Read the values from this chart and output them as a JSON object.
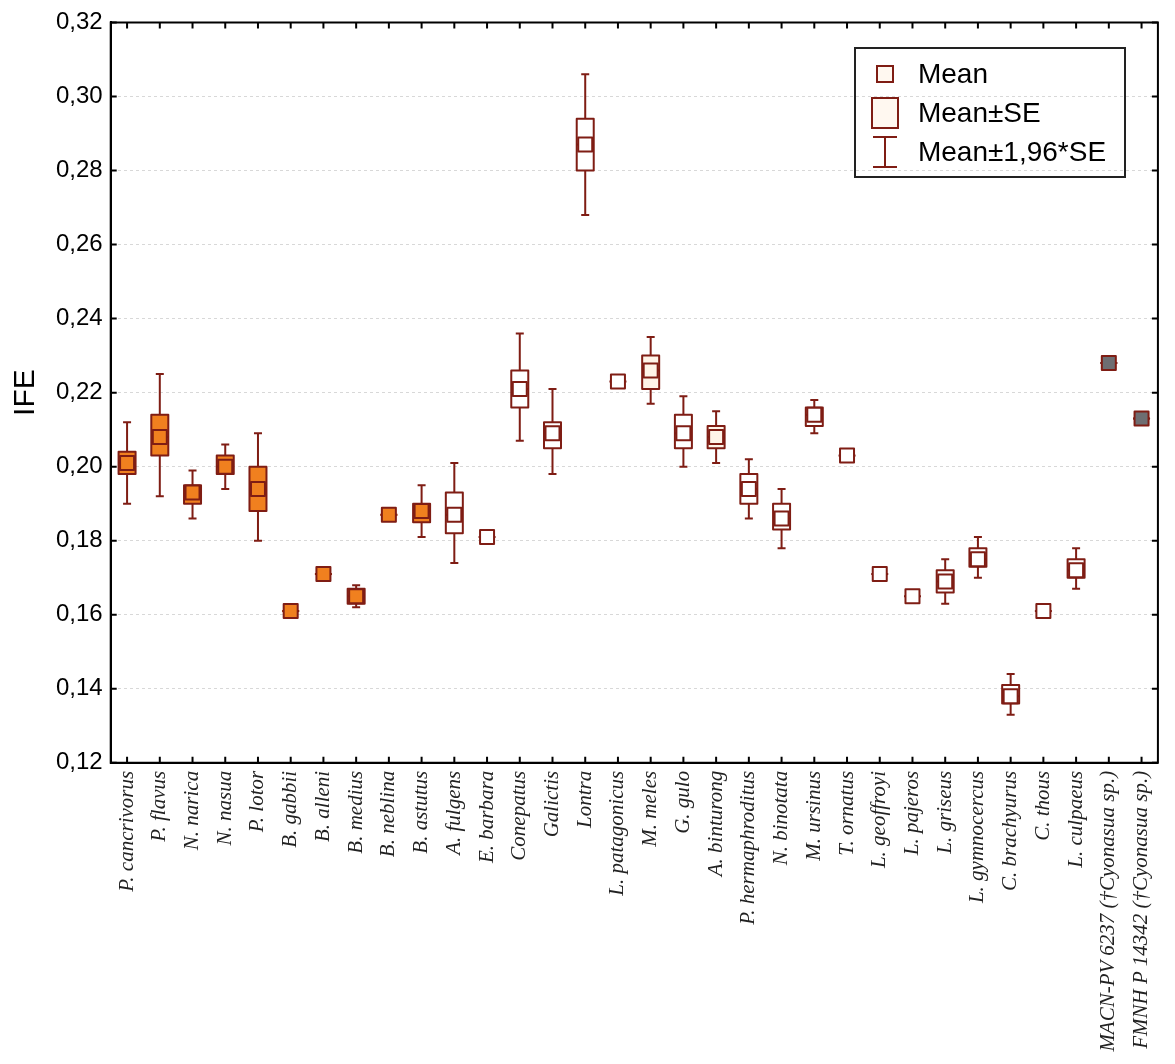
{
  "chart_data": {
    "type": "box",
    "ylabel": "IFE",
    "categories": [
      "P. cancrivorus",
      "P. flavus",
      "N. narica",
      "N. nasua",
      "P. lotor",
      "B. gabbii",
      "B. alleni",
      "B. medius",
      "B. neblina",
      "B. astutus",
      "A. fulgens",
      "E. barbara",
      "Conepatus",
      "Galictis",
      "Lontra",
      "L. patagonicus",
      "M. meles",
      "G. gulo",
      "A. binturong",
      "P. hermaphroditus",
      "N. binotata",
      "M. ursinus",
      "T. ornatus",
      "L. geoffroyi",
      "L. pajeros",
      "L. griseus",
      "L. gymnocercus",
      "C. brachyurus",
      "C. thous",
      "L. culpaeus",
      "MACN-PV 6237 (†Cyonasua sp.)",
      "FMNH P 14342 (†Cyonasua sp.)"
    ],
    "boxes": [
      {
        "low": 0.19,
        "q1": 0.198,
        "median": 0.201,
        "q3": 0.204,
        "high": 0.212,
        "mean": 0.201
      },
      {
        "low": 0.192,
        "q1": 0.203,
        "median": 0.208,
        "q3": 0.214,
        "high": 0.225,
        "mean": 0.208
      },
      {
        "low": 0.186,
        "q1": 0.19,
        "median": 0.193,
        "q3": 0.195,
        "high": 0.199,
        "mean": 0.193
      },
      {
        "low": 0.194,
        "q1": 0.198,
        "median": 0.2,
        "q3": 0.203,
        "high": 0.206,
        "mean": 0.2
      },
      {
        "low": 0.18,
        "q1": 0.188,
        "median": 0.194,
        "q3": 0.2,
        "high": 0.209,
        "mean": 0.194
      },
      {
        "low": 0.161,
        "q1": 0.161,
        "median": 0.161,
        "q3": 0.161,
        "high": 0.161,
        "mean": 0.161
      },
      {
        "low": 0.171,
        "q1": 0.171,
        "median": 0.171,
        "q3": 0.171,
        "high": 0.171,
        "mean": 0.171
      },
      {
        "low": 0.162,
        "q1": 0.163,
        "median": 0.165,
        "q3": 0.167,
        "high": 0.168,
        "mean": 0.165
      },
      {
        "low": 0.187,
        "q1": 0.187,
        "median": 0.187,
        "q3": 0.187,
        "high": 0.187,
        "mean": 0.187
      },
      {
        "low": 0.181,
        "q1": 0.185,
        "median": 0.188,
        "q3": 0.19,
        "high": 0.195,
        "mean": 0.188
      },
      {
        "low": 0.174,
        "q1": 0.182,
        "median": 0.187,
        "q3": 0.193,
        "high": 0.201,
        "mean": 0.187
      },
      {
        "low": 0.181,
        "q1": 0.181,
        "median": 0.181,
        "q3": 0.181,
        "high": 0.181,
        "mean": 0.181
      },
      {
        "low": 0.207,
        "q1": 0.216,
        "median": 0.221,
        "q3": 0.226,
        "high": 0.236,
        "mean": 0.221
      },
      {
        "low": 0.198,
        "q1": 0.205,
        "median": 0.209,
        "q3": 0.212,
        "high": 0.221,
        "mean": 0.209
      },
      {
        "low": 0.268,
        "q1": 0.28,
        "median": 0.287,
        "q3": 0.294,
        "high": 0.306,
        "mean": 0.287
      },
      {
        "low": 0.223,
        "q1": 0.223,
        "median": 0.223,
        "q3": 0.223,
        "high": 0.223,
        "mean": 0.223
      },
      {
        "low": 0.217,
        "q1": 0.221,
        "median": 0.226,
        "q3": 0.23,
        "high": 0.235,
        "mean": 0.226
      },
      {
        "low": 0.2,
        "q1": 0.205,
        "median": 0.209,
        "q3": 0.214,
        "high": 0.219,
        "mean": 0.209
      },
      {
        "low": 0.201,
        "q1": 0.205,
        "median": 0.208,
        "q3": 0.211,
        "high": 0.215,
        "mean": 0.208
      },
      {
        "low": 0.186,
        "q1": 0.19,
        "median": 0.194,
        "q3": 0.198,
        "high": 0.202,
        "mean": 0.194
      },
      {
        "low": 0.178,
        "q1": 0.183,
        "median": 0.186,
        "q3": 0.19,
        "high": 0.194,
        "mean": 0.186
      },
      {
        "low": 0.209,
        "q1": 0.211,
        "median": 0.214,
        "q3": 0.216,
        "high": 0.218,
        "mean": 0.214
      },
      {
        "low": 0.203,
        "q1": 0.203,
        "median": 0.203,
        "q3": 0.203,
        "high": 0.203,
        "mean": 0.203
      },
      {
        "low": 0.171,
        "q1": 0.171,
        "median": 0.171,
        "q3": 0.171,
        "high": 0.171,
        "mean": 0.171
      },
      {
        "low": 0.165,
        "q1": 0.165,
        "median": 0.165,
        "q3": 0.165,
        "high": 0.165,
        "mean": 0.165
      },
      {
        "low": 0.163,
        "q1": 0.166,
        "median": 0.169,
        "q3": 0.172,
        "high": 0.175,
        "mean": 0.169
      },
      {
        "low": 0.17,
        "q1": 0.173,
        "median": 0.175,
        "q3": 0.178,
        "high": 0.181,
        "mean": 0.175
      },
      {
        "low": 0.133,
        "q1": 0.136,
        "median": 0.138,
        "q3": 0.141,
        "high": 0.144,
        "mean": 0.138
      },
      {
        "low": 0.161,
        "q1": 0.161,
        "median": 0.161,
        "q3": 0.161,
        "high": 0.161,
        "mean": 0.161
      },
      {
        "low": 0.167,
        "q1": 0.17,
        "median": 0.172,
        "q3": 0.175,
        "high": 0.178,
        "mean": 0.172
      },
      {
        "low": 0.228,
        "q1": 0.228,
        "median": 0.228,
        "q3": 0.228,
        "high": 0.228,
        "mean": 0.228
      },
      {
        "low": 0.213,
        "q1": 0.213,
        "median": 0.213,
        "q3": 0.213,
        "high": 0.213,
        "mean": 0.213
      }
    ],
    "color": "#7f1d14",
    "colors": [
      "#f0801f",
      "#f0801f",
      "#f0801f",
      "#f0801f",
      "#f0801f",
      "#f0801f",
      "#f0801f",
      "#f0801f",
      "#f0801f",
      "#f0801f",
      "#ffffff",
      "#ffffff",
      "#ffffff",
      "#ffffff",
      "#ffffff",
      "#ffffff",
      "#fff4e8",
      "#ffffff",
      "#fff4e8",
      "#ffffff",
      "#ffffff",
      "#ffffff",
      "#ffffff",
      "#ffffff",
      "#ffffff",
      "#ffffff",
      "#ffffff",
      "#ffffff",
      "#ffffff",
      "#ffffff",
      "#6e6e72",
      "#6e6e72"
    ],
    "ylim": [
      0.12,
      0.32
    ],
    "yticks": [
      {
        "value": 0.12,
        "label": "0,12"
      },
      {
        "value": 0.14,
        "label": "0,14"
      },
      {
        "value": 0.16,
        "label": "0,16"
      },
      {
        "value": 0.18,
        "label": "0,18"
      },
      {
        "value": 0.2,
        "label": "0,20"
      },
      {
        "value": 0.22,
        "label": "0,22"
      },
      {
        "value": 0.24,
        "label": "0,24"
      },
      {
        "value": 0.26,
        "label": "0,26"
      },
      {
        "value": 0.28,
        "label": "0,28"
      },
      {
        "value": 0.3,
        "label": "0,30"
      },
      {
        "value": 0.32,
        "label": "0,32"
      }
    ],
    "grid": "y",
    "annotations": [
      "Mean",
      "Mean±SE",
      "Mean±1,96*SE"
    ]
  }
}
